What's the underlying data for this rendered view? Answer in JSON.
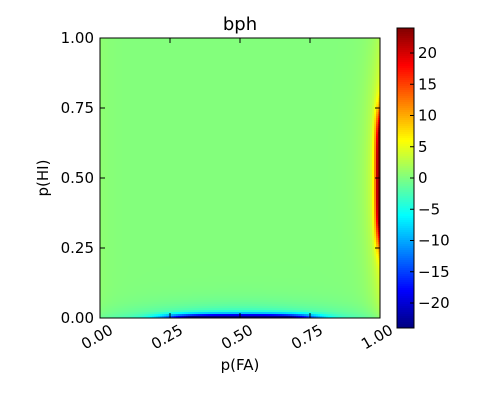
{
  "chart_data": {
    "type": "heatmap",
    "title": "bph",
    "xlabel": "p(FA)",
    "ylabel": "p(HI)",
    "xlim": [
      0,
      1
    ],
    "ylim": [
      0,
      1
    ],
    "x_ticks": [
      0.0,
      0.25,
      0.5,
      0.75,
      1.0
    ],
    "x_tick_labels": [
      "0.00",
      "0.25",
      "0.50",
      "0.75",
      "1.00"
    ],
    "y_ticks": [
      0.0,
      0.25,
      0.5,
      0.75,
      1.0
    ],
    "y_tick_labels": [
      "0.00",
      "0.25",
      "0.50",
      "0.75",
      "1.00"
    ],
    "colormap": "jet",
    "color_range": [
      -24,
      24
    ],
    "colorbar_ticks": [
      20,
      15,
      10,
      5,
      0,
      -5,
      -10,
      -15,
      -20
    ],
    "colorbar_tick_labels": [
      "20",
      "15",
      "10",
      "5",
      "0",
      "−5",
      "−10",
      "−15",
      "−20"
    ],
    "field_description": "near zero across most of the domain; strongly positive (~24) along the right edge near p(FA)=1 around p(HI)=0.5; strongly negative (~-24) along the bottom edge near p(HI)=0 around p(FA)=0.5"
  }
}
